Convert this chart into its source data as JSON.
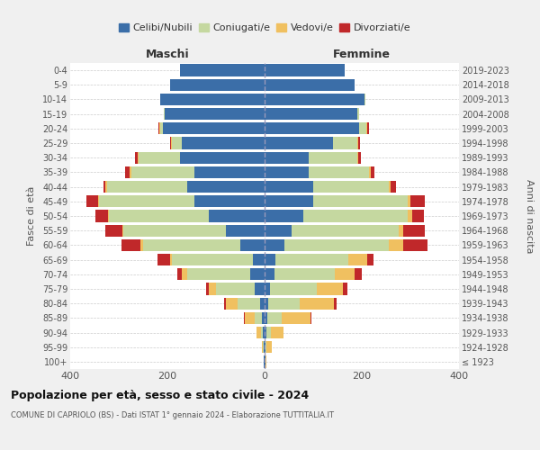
{
  "age_groups": [
    "100+",
    "95-99",
    "90-94",
    "85-89",
    "80-84",
    "75-79",
    "70-74",
    "65-69",
    "60-64",
    "55-59",
    "50-54",
    "45-49",
    "40-44",
    "35-39",
    "30-34",
    "25-29",
    "20-24",
    "15-19",
    "10-14",
    "5-9",
    "0-4"
  ],
  "birth_years": [
    "≤ 1923",
    "1924-1928",
    "1929-1933",
    "1934-1938",
    "1939-1943",
    "1944-1948",
    "1949-1953",
    "1954-1958",
    "1959-1963",
    "1964-1968",
    "1969-1973",
    "1974-1978",
    "1979-1983",
    "1984-1988",
    "1989-1993",
    "1994-1998",
    "1999-2003",
    "2004-2008",
    "2009-2013",
    "2014-2018",
    "2019-2023"
  ],
  "colors": {
    "celibi": "#3b6ea8",
    "coniugati": "#c5d8a0",
    "vedovi": "#f0c060",
    "divorziati": "#c0282a"
  },
  "maschi": {
    "celibi": [
      1,
      2,
      3,
      5,
      10,
      20,
      30,
      25,
      50,
      80,
      115,
      145,
      160,
      145,
      175,
      170,
      210,
      205,
      215,
      195,
      175
    ],
    "coniugati": [
      0,
      1,
      5,
      15,
      45,
      80,
      130,
      165,
      200,
      210,
      205,
      195,
      165,
      130,
      85,
      20,
      5,
      2,
      0,
      0,
      0
    ],
    "vedovi": [
      1,
      3,
      8,
      20,
      25,
      15,
      10,
      5,
      5,
      3,
      3,
      2,
      2,
      2,
      2,
      2,
      1,
      0,
      0,
      0,
      0
    ],
    "divorziati": [
      0,
      0,
      0,
      2,
      3,
      5,
      10,
      25,
      40,
      35,
      25,
      25,
      5,
      10,
      5,
      3,
      2,
      0,
      0,
      0,
      0
    ]
  },
  "femmine": {
    "celibi": [
      1,
      2,
      3,
      5,
      8,
      12,
      20,
      22,
      40,
      55,
      80,
      100,
      100,
      90,
      90,
      140,
      195,
      190,
      205,
      185,
      165
    ],
    "coniugati": [
      0,
      2,
      10,
      30,
      65,
      95,
      125,
      150,
      215,
      220,
      215,
      195,
      155,
      125,
      100,
      50,
      15,
      5,
      2,
      0,
      0
    ],
    "vedovi": [
      3,
      10,
      25,
      60,
      70,
      55,
      40,
      40,
      30,
      10,
      8,
      5,
      5,
      3,
      3,
      3,
      2,
      0,
      0,
      0,
      0
    ],
    "divorziati": [
      0,
      0,
      0,
      2,
      5,
      8,
      15,
      12,
      50,
      45,
      25,
      30,
      10,
      8,
      5,
      3,
      2,
      0,
      0,
      0,
      0
    ]
  },
  "title": "Popolazione per età, sesso e stato civile - 2024",
  "subtitle": "COMUNE DI CAPRIOLO (BS) - Dati ISTAT 1° gennaio 2024 - Elaborazione TUTTITALIA.IT",
  "xlabel_left": "Maschi",
  "xlabel_right": "Femmine",
  "ylabel_left": "Fasce di età",
  "ylabel_right": "Anni di nascita",
  "xlim": 400,
  "bg_color": "#f0f0f0",
  "plot_bg": "#ffffff",
  "legend_labels": [
    "Celibi/Nubili",
    "Coniugati/e",
    "Vedovi/e",
    "Divorziati/e"
  ],
  "xticks": [
    -400,
    -200,
    0,
    200,
    400
  ]
}
